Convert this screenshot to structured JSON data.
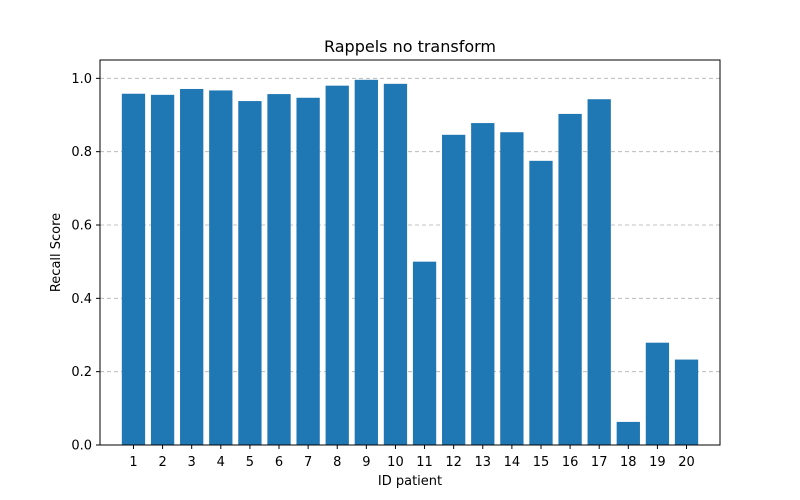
{
  "chart_data": {
    "type": "bar",
    "title": "Rappels no transform",
    "xlabel": "ID patient",
    "ylabel": "Recall Score",
    "categories": [
      "1",
      "2",
      "3",
      "4",
      "5",
      "6",
      "7",
      "8",
      "9",
      "10",
      "11",
      "12",
      "13",
      "14",
      "15",
      "16",
      "17",
      "18",
      "19",
      "20"
    ],
    "values": [
      0.958,
      0.955,
      0.971,
      0.967,
      0.938,
      0.957,
      0.947,
      0.98,
      0.996,
      0.985,
      0.5,
      0.846,
      0.878,
      0.853,
      0.775,
      0.903,
      0.943,
      0.063,
      0.279,
      0.233
    ],
    "ylim": [
      0.0,
      1.05
    ],
    "yticks": [
      "0.0",
      "0.2",
      "0.4",
      "0.6",
      "0.8",
      "1.0"
    ],
    "grid": "y-dashed",
    "bar_color": "#1f77b4",
    "grid_color": "#b0b0b0"
  }
}
